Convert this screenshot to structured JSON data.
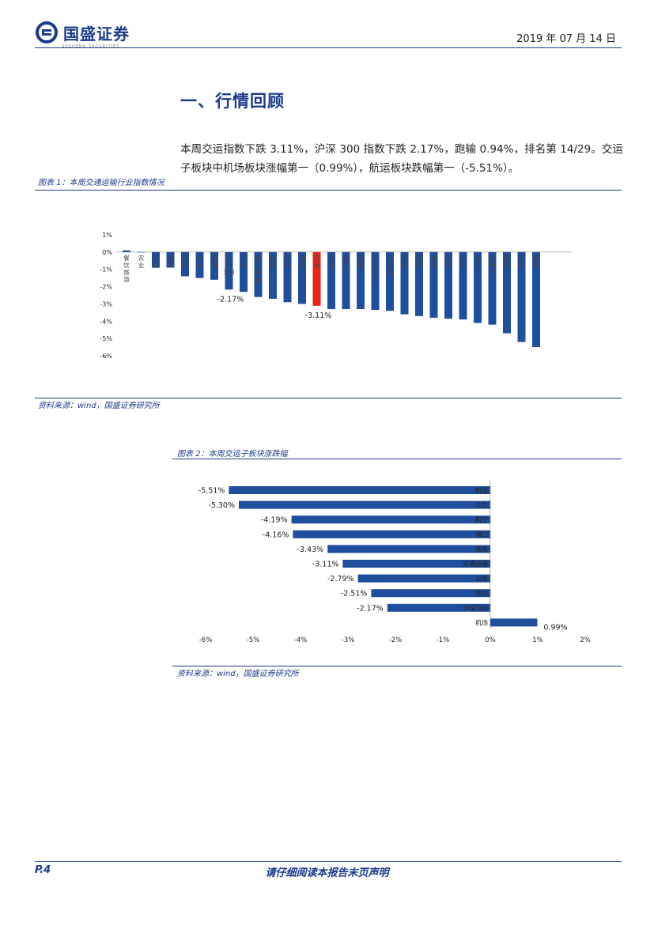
{
  "header": {
    "brand": "国盛证券",
    "brand_sub": "SUSHENG SECURITIES",
    "date": "2019 年 07 月 14 日"
  },
  "section": {
    "title": "一、行情回顾",
    "paragraph": "本周交运指数下跌 3.11%，沪深 300 指数下跌 2.17%，跑输 0.94%，排名第 14/29。交运子板块中机场板块涨幅第一（0.99%），航运板块跌幅第一（-5.51%）。"
  },
  "figure1": {
    "caption": "图表 1：本周交通运输行业指数情况",
    "source": "资料来源：wind，国盛证券研究所"
  },
  "figure2": {
    "caption": "图表 2：本周交运子板块涨跌幅",
    "source": "资料来源：wind，国盛证券研究所"
  },
  "footer": {
    "page": "P.4",
    "note": "请仔细阅读本报告末页声明"
  },
  "colors": {
    "brand": "#1a3a8c",
    "bar": "#1f4e9c",
    "highlight": "#e8231c"
  },
  "chart_data": [
    {
      "type": "bar",
      "title": "",
      "xlabel": "",
      "ylabel": "",
      "ylim": [
        -6,
        1
      ],
      "yticks": [
        "1%",
        "0%",
        "-1%",
        "-2%",
        "-3%",
        "-4%",
        "-5%",
        "-6%"
      ],
      "categories": [
        "餐饮旅游",
        "农业",
        "银行",
        "化工",
        "医药",
        "食品",
        "家电",
        "沪深300",
        "传媒",
        "电力设备",
        "纺织",
        "有色",
        "电子",
        "交运",
        "综合",
        "轻工",
        "机械",
        "石油化工",
        "计算机",
        "商贸",
        "建材",
        "通信",
        "汽车",
        "非银",
        "军工",
        "房地产",
        "钢铁",
        "煤炭",
        "建筑"
      ],
      "values": [
        0.1,
        0.0,
        -0.9,
        -0.9,
        -1.4,
        -1.5,
        -1.6,
        -2.17,
        -2.3,
        -2.6,
        -2.7,
        -2.9,
        -3.0,
        -3.11,
        -3.3,
        -3.3,
        -3.3,
        -3.35,
        -3.4,
        -3.6,
        -3.7,
        -3.8,
        -3.85,
        -3.9,
        -4.1,
        -4.2,
        -4.7,
        -5.2,
        -5.5
      ],
      "highlight": [
        "沪深300",
        "交运"
      ],
      "data_labels": [
        {
          "category": "沪深300",
          "text": "-2.17%"
        },
        {
          "category": "交运",
          "text": "-3.11%"
        }
      ]
    },
    {
      "type": "bar",
      "orientation": "horizontal",
      "title": "",
      "xlabel": "",
      "ylabel": "",
      "xlim": [
        -6,
        2
      ],
      "xticks": [
        "-6%",
        "-5%",
        "-4%",
        "-3%",
        "-2%",
        "-1%",
        "0%",
        "1%",
        "2%"
      ],
      "categories": [
        "航运",
        "公交",
        "航空",
        "港口",
        "铁路",
        "交通运输",
        "公路",
        "物流",
        "沪深300",
        "机场"
      ],
      "values": [
        -5.51,
        -5.3,
        -4.19,
        -4.16,
        -3.43,
        -3.11,
        -2.79,
        -2.51,
        -2.17,
        0.99
      ],
      "labels": [
        "-5.51%",
        "-5.30%",
        "-4.19%",
        "-4.16%",
        "-3.43%",
        "-3.11%",
        "-2.79%",
        "-2.51%",
        "-2.17%",
        "0.99%"
      ]
    }
  ]
}
